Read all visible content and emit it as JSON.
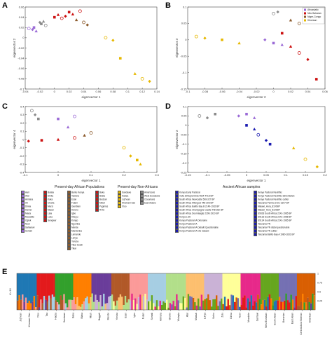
{
  "panels": {
    "A": "A",
    "B": "B",
    "C": "C",
    "D": "D",
    "E": "E"
  },
  "chart_data": [
    {
      "type": "scatter",
      "panel": "A",
      "xlabel": "eigenvector 1",
      "ylabel": "eigenvector 2",
      "xticks": [
        "-0.04",
        "-0.02",
        "0",
        "0.02",
        "0.04",
        "0.06",
        "0.08",
        "0.1",
        "0.12",
        "0.14"
      ],
      "yticks": [
        "-0.1",
        "-0.08",
        "-0.06",
        "-0.04",
        "-0.02",
        "0",
        "0.02",
        "0.04",
        "0.06"
      ],
      "xlim": [
        -0.04,
        0.14
      ],
      "ylim": [
        -0.1,
        0.06
      ],
      "series": [
        {
          "color": "#9b6bd6",
          "points": [
            [
              -0.035,
              0.018
            ],
            [
              -0.03,
              0.016
            ],
            [
              -0.028,
              0.02
            ],
            [
              -0.025,
              0.013
            ]
          ]
        },
        {
          "color": "#8a8a8a",
          "points": [
            [
              -0.02,
              0.03
            ],
            [
              -0.018,
              0.027
            ],
            [
              -0.015,
              0.032
            ],
            [
              -0.012,
              0.024
            ]
          ]
        },
        {
          "color": "#cc1111",
          "points": [
            [
              0.0,
              0.04
            ],
            [
              0.005,
              0.045
            ],
            [
              0.01,
              0.038
            ],
            [
              0.015,
              0.042
            ],
            [
              0.02,
              0.05
            ],
            [
              0.025,
              0.046
            ],
            [
              0.035,
              0.052
            ]
          ]
        },
        {
          "color": "#8b5a2b",
          "points": [
            [
              0.03,
              0.035
            ],
            [
              0.04,
              0.03
            ],
            [
              0.045,
              0.025
            ]
          ]
        },
        {
          "color": "#e6b800",
          "points": [
            [
              0.07,
              0.0
            ],
            [
              0.08,
              -0.005
            ],
            [
              0.09,
              -0.04
            ],
            [
              0.11,
              -0.07
            ],
            [
              0.12,
              -0.08
            ],
            [
              0.13,
              -0.085
            ]
          ]
        }
      ]
    },
    {
      "type": "scatter",
      "panel": "B",
      "xlabel": "eigenvector 2",
      "ylabel": "eigenvector 3",
      "xticks": [
        "-0.1",
        "-0.08",
        "-0.06",
        "-0.04",
        "-0.02",
        "0",
        "0.02",
        "0.04",
        "0.06"
      ],
      "yticks": [
        "-0.15",
        "-0.1",
        "-0.05",
        "0",
        "0.05",
        "0.1"
      ],
      "xlim": [
        -0.1,
        0.06
      ],
      "ylim": [
        -0.15,
        0.1
      ],
      "legend": [
        "Afroasiatic",
        "Nilo-Saharan",
        "Niger-Congo",
        "Khoesan"
      ],
      "legend_colors": [
        "#9b6bd6",
        "#cc1111",
        "#8b5a2b",
        "#e6b800"
      ],
      "series": [
        {
          "color": "#e6b800",
          "points": [
            [
              -0.09,
              0.01
            ],
            [
              -0.08,
              0.005
            ],
            [
              -0.06,
              0.0
            ],
            [
              -0.04,
              -0.01
            ]
          ]
        },
        {
          "color": "#9b6bd6",
          "points": [
            [
              -0.01,
              0.0
            ],
            [
              0.0,
              -0.01
            ],
            [
              0.01,
              -0.015
            ]
          ]
        },
        {
          "color": "#cc1111",
          "points": [
            [
              0.01,
              0.02
            ],
            [
              0.02,
              -0.02
            ],
            [
              0.03,
              -0.04
            ],
            [
              0.04,
              -0.06
            ],
            [
              0.05,
              -0.12
            ]
          ]
        },
        {
          "color": "#8b5a2b",
          "points": [
            [
              0.02,
              0.06
            ],
            [
              0.03,
              0.05
            ],
            [
              0.04,
              0.07
            ]
          ]
        },
        {
          "color": "#8a8a8a",
          "points": [
            [
              0.0,
              0.08
            ],
            [
              0.005,
              0.085
            ]
          ]
        }
      ]
    },
    {
      "type": "scatter",
      "panel": "C",
      "xlabel": "eigenvector 1",
      "ylabel": "eigenvector 4",
      "xticks": [
        "-0.1",
        "0",
        "0.1",
        "0.2",
        "0.3"
      ],
      "yticks": [
        "-0.4",
        "-0.3",
        "-0.2",
        "-0.1",
        "0",
        "0.1",
        "0.2",
        "0.3",
        "0.4"
      ],
      "xlim": [
        -0.1,
        0.3
      ],
      "ylim": [
        -0.4,
        0.4
      ],
      "series": [
        {
          "color": "#8a8a8a",
          "points": [
            [
              -0.08,
              0.35
            ],
            [
              -0.07,
              0.3
            ],
            [
              -0.06,
              0.25
            ]
          ]
        },
        {
          "color": "#cc1111",
          "points": [
            [
              -0.09,
              -0.02
            ],
            [
              -0.05,
              -0.01
            ],
            [
              0.0,
              0.0
            ],
            [
              0.05,
              0.02
            ]
          ]
        },
        {
          "color": "#9b6bd6",
          "points": [
            [
              0.0,
              0.25
            ],
            [
              0.03,
              0.15
            ],
            [
              0.05,
              0.28
            ]
          ]
        },
        {
          "color": "#8b5a2b",
          "points": [
            [
              0.08,
              0.05
            ],
            [
              0.1,
              0.08
            ]
          ]
        },
        {
          "color": "#e6b800",
          "points": [
            [
              0.2,
              -0.1
            ],
            [
              0.22,
              -0.2
            ],
            [
              0.24,
              -0.25
            ],
            [
              0.25,
              -0.3
            ]
          ]
        }
      ]
    },
    {
      "type": "scatter",
      "panel": "D",
      "xlabel": "eigenvector 1",
      "ylabel": "eigenvector 2",
      "xticks": [
        "-0.15",
        "-0.1",
        "-0.05",
        "0",
        "0.05",
        "0.1",
        "0.15",
        "0.2"
      ],
      "yticks": [
        "-0.25",
        "-0.2",
        "-0.15",
        "-0.1",
        "-0.05",
        "0",
        "0.05",
        "0.1"
      ],
      "xlim": [
        -0.15,
        0.2
      ],
      "ylim": [
        -0.25,
        0.1
      ],
      "series": [
        {
          "color": "#8a8a8a",
          "points": [
            [
              -0.12,
              0.05
            ],
            [
              -0.1,
              0.04
            ],
            [
              -0.08,
              0.06
            ]
          ]
        },
        {
          "color": "#9b6bd6",
          "points": [
            [
              -0.02,
              0.05
            ],
            [
              0.0,
              0.06
            ],
            [
              0.02,
              0.04
            ]
          ]
        },
        {
          "color": "#1a1ab0",
          "points": [
            [
              0.0,
              0.0
            ],
            [
              0.02,
              -0.02
            ],
            [
              0.03,
              -0.05
            ],
            [
              0.05,
              -0.08
            ],
            [
              0.06,
              -0.1
            ]
          ]
        },
        {
          "color": "#e6b800",
          "points": [
            [
              0.12,
              -0.12
            ],
            [
              0.15,
              -0.18
            ],
            [
              0.18,
              -0.22
            ]
          ]
        }
      ]
    },
    {
      "type": "bar",
      "panel": "E",
      "ylabel": "K=16",
      "yticks_right": [
        "0.25",
        "0.5",
        "0.75",
        "1"
      ],
      "population_labels": [
        "Ju|'hoan",
        "Khomani San",
        "!Xoo",
        "Taa",
        "Hadza",
        "Sandawe",
        "Baka",
        "Biaka",
        "Mbuti",
        "Bagyeli",
        "Mende",
        "Yoruba",
        "Esan",
        "Igbo",
        "Fulani",
        "Somali",
        "Amhara",
        "Oromo",
        "Wolayta",
        "Afar",
        "Maasai",
        "Luhya",
        "Sotho",
        "Zulu",
        "Dinka",
        "Nuer",
        "Mozabite",
        "Sahrawi",
        "West Eurasian",
        "South Asian",
        "Oceanian",
        "East Asian",
        "Central Asia Siberian",
        "American"
      ]
    }
  ],
  "legendC": {
    "title1": "Present-day African Populations",
    "title2": "Present-day Non-Africans",
    "col1": [
      "Aari",
      "Afar",
      "Amhara",
      "Ari",
      "Dinka",
      "Hamer",
      "Mada",
      "Mozabite",
      "Ogiek",
      "Nuer",
      "Saharawi",
      "Somali"
    ],
    "col2": [
      "Bulala",
      "Dinka",
      "Kaka",
      "Chaha",
      "Mursi",
      "Masai",
      "Lala",
      "Luka",
      "Sengwer"
    ],
    "col3": [
      "Bantu Kenya",
      "Tswana",
      "Esan",
      "Fulani",
      "Gambian",
      "Herero",
      "Igbo",
      "Kikuyu",
      "Kongo",
      "Ngumba",
      "Mende",
      "Mandenka",
      "Lemande",
      "Luhya",
      "Yoruba",
      "Tikar South",
      "Tikar"
    ],
    "col4": [
      "Baka",
      "Biaka",
      "Bedzan",
      "Mbuti",
      "Pygmies",
      "RHG"
    ],
    "col5": [
      "Sandawe",
      "Hadza",
      "Ju|'hoan",
      "Khomani San",
      "!Xoo"
    ],
    "col6": [
      "Americans",
      "West Eurasians",
      "Oceanians",
      "East Asians"
    ]
  },
  "legendD": {
    "title": "Ancient African samples",
    "left": [
      "Kenya Early Pastoral",
      "mota Ethiopia Mota 4524-4418 BP",
      "South Africa Newcastle 508-327 BP",
      "South Africa Mfongosi 448-306 BP",
      "South Africa Ballito Bay B 2149-1932 BP",
      "South Africa Champagne Castle 448-282 BP",
      "South Africa Doornlaagte 2296-1910 BP",
      "Kenya LSA",
      "Kenya Pastoral IA Deloraine",
      "Kenya Pastoral IA",
      "Kenya Pastoral IA Dabaiti Questionable",
      "Kenya Pastoral IA Ole Gaiaeb"
    ],
    "right": [
      "Kenya Pastoral Neolithic",
      "Kenya Pastoral Neolithic Elmenteitan",
      "Kenya Pastoral Neolithic outlier",
      "Tanzania Pemba 1421-1307 BP",
      "Malawi_Hora_8100BP",
      "Malawi_Hora_8100BP",
      "S9028 South Africa 2241-1965 BP",
      "S9133 South Africa 2241-1965 BP",
      "S9134 South Africa 2241-1965 BP",
      "Tanzania PN",
      "Tanzania PN distal questionable",
      "Tanzania PN outlier",
      "Tanzania Ballito Bay A 1980-1831 BP"
    ]
  }
}
